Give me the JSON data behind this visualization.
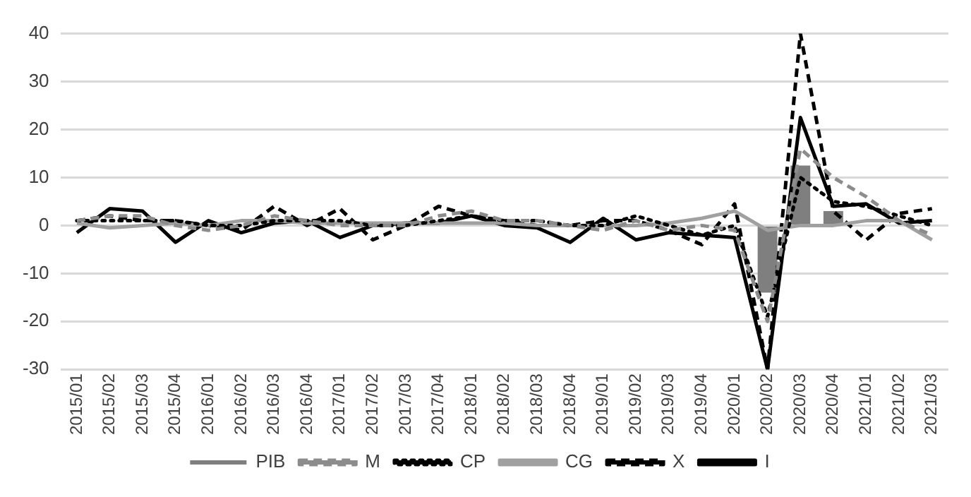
{
  "chart_data": {
    "type": "line",
    "categories": [
      "2015/01",
      "2015/02",
      "2015/03",
      "2015/04",
      "2016/01",
      "2016/02",
      "2016/03",
      "2016/04",
      "2017/01",
      "2017/02",
      "2017/03",
      "2017/04",
      "2018/01",
      "2018/02",
      "2018/03",
      "2018/04",
      "2019/01",
      "2019/02",
      "2019/03",
      "2019/04",
      "2020/01",
      "2020/02",
      "2020/03",
      "2020/04",
      "2021/01",
      "2021/02",
      "2021/03"
    ],
    "series": [
      {
        "name": "PIB",
        "type": "bar",
        "color": "#7f7f7f",
        "values": [
          null,
          null,
          null,
          null,
          null,
          null,
          null,
          null,
          null,
          null,
          null,
          null,
          null,
          null,
          null,
          null,
          null,
          null,
          null,
          null,
          null,
          -14,
          12.5,
          3,
          null,
          null,
          null
        ]
      },
      {
        "name": "M",
        "color": "#8c8c8c",
        "line_style": "dashed",
        "values": [
          1,
          2,
          2,
          0,
          -1,
          0,
          2,
          1,
          0,
          0,
          0,
          2,
          3,
          1,
          1,
          0,
          -1,
          1,
          -1,
          0,
          -1,
          -20,
          16,
          10,
          6,
          1,
          -2
        ]
      },
      {
        "name": "CP",
        "color": "#000000",
        "line_style": "dotted",
        "values": [
          1,
          1,
          1,
          1,
          0,
          0,
          1,
          1,
          1,
          0,
          0,
          1,
          2,
          1,
          1,
          0,
          0,
          2,
          0,
          -2,
          0,
          -19,
          10,
          5,
          4,
          2,
          0
        ]
      },
      {
        "name": "CG",
        "color": "#a0a0a0",
        "line_style": "solid",
        "values": [
          0.5,
          -0.5,
          0,
          0.5,
          0,
          1,
          1,
          0.5,
          0.5,
          0.5,
          0.5,
          0.5,
          0.5,
          0.5,
          0,
          0,
          0,
          0,
          0.5,
          1.5,
          3,
          -1,
          0,
          0,
          1,
          1,
          -3
        ]
      },
      {
        "name": "X",
        "color": "#000000",
        "line_style": "dashed",
        "values": [
          1,
          2,
          1,
          1,
          0,
          -1,
          4,
          0,
          3.5,
          -3,
          0,
          4,
          2,
          1,
          0,
          0,
          1,
          1,
          -1,
          -4,
          4.5,
          -30,
          40,
          3,
          -3,
          2.5,
          3.5
        ]
      },
      {
        "name": "I",
        "color": "#000000",
        "line_style": "solid",
        "values": [
          -1.5,
          3.5,
          3,
          -3.5,
          1,
          -1.5,
          0.5,
          1,
          -2.5,
          0,
          0.5,
          0.5,
          2,
          0,
          -0.5,
          -3.5,
          1.5,
          -3,
          -1.5,
          -2,
          -2.5,
          -30,
          22.5,
          4,
          4.5,
          0.5,
          1
        ]
      }
    ],
    "ylim": [
      -30,
      40
    ],
    "yticks": [
      -30,
      -20,
      -10,
      0,
      10,
      20,
      30,
      40
    ],
    "grid": "y",
    "legend": "bottom",
    "marker": "none"
  }
}
